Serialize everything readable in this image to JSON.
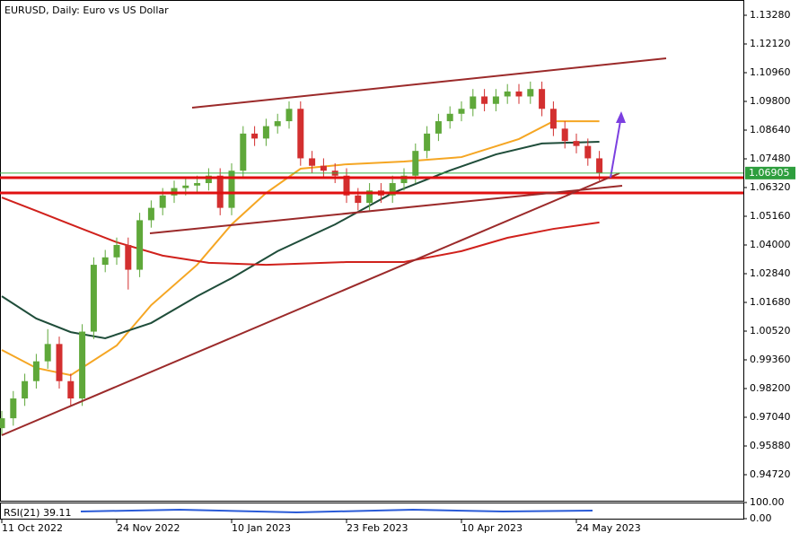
{
  "chart_data": {
    "type": "candlestick",
    "title": "EURUSD, Daily:  Euro vs US Dollar",
    "categories": [
      "11 Oct 2022",
      null,
      null,
      null,
      null,
      null,
      null,
      null,
      null,
      null,
      "24 Nov 2022",
      null,
      null,
      null,
      null,
      null,
      null,
      null,
      null,
      null,
      "10 Jan 2023",
      null,
      null,
      null,
      null,
      null,
      null,
      null,
      null,
      null,
      "23 Feb 2023",
      null,
      null,
      null,
      null,
      null,
      null,
      null,
      null,
      null,
      "10 Apr 2023",
      null,
      null,
      null,
      null,
      null,
      null,
      null,
      null,
      null,
      "24 May 2023",
      null,
      null
    ],
    "open": [
      0.966,
      0.97,
      0.978,
      0.985,
      0.993,
      1.0,
      0.985,
      0.978,
      1.005,
      1.032,
      1.035,
      1.04,
      1.03,
      1.05,
      1.055,
      1.06,
      1.063,
      1.064,
      1.065,
      1.068,
      1.055,
      1.07,
      1.085,
      1.083,
      1.088,
      1.09,
      1.095,
      1.075,
      1.072,
      1.07,
      1.068,
      1.06,
      1.057,
      1.062,
      1.06,
      1.065,
      1.068,
      1.078,
      1.085,
      1.09,
      1.093,
      1.095,
      1.1,
      1.097,
      1.1,
      1.102,
      1.1,
      1.103,
      1.095,
      1.087,
      1.082,
      1.08,
      1.075
    ],
    "high": [
      0.973,
      0.981,
      0.988,
      0.996,
      1.006,
      1.003,
      0.988,
      1.008,
      1.035,
      1.038,
      1.043,
      1.043,
      1.053,
      1.058,
      1.063,
      1.066,
      1.067,
      1.068,
      1.071,
      1.071,
      1.073,
      1.088,
      1.088,
      1.091,
      1.093,
      1.098,
      1.098,
      1.078,
      1.075,
      1.073,
      1.071,
      1.063,
      1.065,
      1.065,
      1.068,
      1.071,
      1.081,
      1.088,
      1.093,
      1.096,
      1.098,
      1.103,
      1.103,
      1.103,
      1.105,
      1.105,
      1.106,
      1.106,
      1.098,
      1.09,
      1.085,
      1.083,
      1.078
    ],
    "low": [
      0.963,
      0.967,
      0.975,
      0.982,
      0.99,
      0.982,
      0.975,
      0.975,
      1.002,
      1.029,
      1.032,
      1.022,
      1.027,
      1.047,
      1.052,
      1.057,
      1.06,
      1.061,
      1.062,
      1.052,
      1.052,
      1.067,
      1.08,
      1.08,
      1.085,
      1.087,
      1.072,
      1.069,
      1.067,
      1.065,
      1.057,
      1.054,
      1.054,
      1.057,
      1.057,
      1.062,
      1.065,
      1.075,
      1.082,
      1.087,
      1.09,
      1.092,
      1.094,
      1.094,
      1.097,
      1.097,
      1.097,
      1.092,
      1.084,
      1.079,
      1.077,
      1.072,
      1.066
    ],
    "close": [
      0.97,
      0.978,
      0.985,
      0.993,
      1.0,
      0.985,
      0.978,
      1.005,
      1.032,
      1.035,
      1.04,
      1.03,
      1.05,
      1.055,
      1.06,
      1.063,
      1.064,
      1.065,
      1.068,
      1.055,
      1.07,
      1.085,
      1.083,
      1.088,
      1.09,
      1.095,
      1.075,
      1.072,
      1.07,
      1.068,
      1.06,
      1.057,
      1.062,
      1.06,
      1.065,
      1.068,
      1.078,
      1.085,
      1.09,
      1.093,
      1.095,
      1.1,
      1.097,
      1.1,
      1.102,
      1.1,
      1.103,
      1.095,
      1.087,
      1.082,
      1.08,
      1.075,
      1.069
    ],
    "up_color": "#5fa83a",
    "down_color": "#d32f2f",
    "moving_averages": [
      {
        "color": "#f5a623",
        "x": [
          0,
          3,
          6,
          10,
          13,
          17,
          20,
          23,
          26,
          30,
          35,
          40,
          45,
          48,
          52
        ],
        "values": [
          0.9976,
          0.9903,
          0.9874,
          0.9994,
          1.0157,
          1.032,
          1.0483,
          1.061,
          1.0708,
          1.0726,
          1.0737,
          1.0755,
          1.0828,
          1.09,
          1.09
        ]
      },
      {
        "color": "#1f4d3a",
        "x": [
          0,
          3,
          6,
          9,
          13,
          17,
          20,
          24,
          29,
          34,
          39,
          43,
          47,
          52
        ],
        "values": [
          1.0193,
          1.0103,
          1.0048,
          1.0023,
          1.0085,
          1.0193,
          1.0266,
          1.0375,
          1.0483,
          1.061,
          1.0701,
          1.0766,
          1.081,
          1.0817
        ]
      },
      {
        "color": "#d0211c",
        "x": [
          0,
          3,
          6,
          10,
          14,
          18,
          23,
          30,
          35,
          40,
          44,
          48,
          52
        ],
        "values": [
          1.0592,
          1.0538,
          1.0483,
          1.0411,
          1.0357,
          1.0328,
          1.032,
          1.0331,
          1.0331,
          1.0375,
          1.0429,
          1.0465,
          1.0491
        ]
      }
    ],
    "current_price": 1.06905,
    "ylim": [
      0.93669,
      1.13896
    ],
    "yticks": [
      {
        "value": 1.1328,
        "label": "1.13280"
      },
      {
        "value": 1.1212,
        "label": "1.12120"
      },
      {
        "value": 1.1096,
        "label": "1.10960"
      },
      {
        "value": 1.098,
        "label": "1.09800"
      },
      {
        "value": 1.0864,
        "label": "1.08640"
      },
      {
        "value": 1.0748,
        "label": "1.07480"
      },
      {
        "value": 1.0632,
        "label": "1.06320"
      },
      {
        "value": 1.0516,
        "label": "1.05160"
      },
      {
        "value": 1.04,
        "label": "1.04000"
      },
      {
        "value": 1.0284,
        "label": "1.02840"
      },
      {
        "value": 1.0168,
        "label": "1.01680"
      },
      {
        "value": 1.0052,
        "label": "1.00520"
      },
      {
        "value": 0.9936,
        "label": "0.99360"
      },
      {
        "value": 0.982,
        "label": "0.98200"
      },
      {
        "value": 0.9704,
        "label": "0.97040"
      },
      {
        "value": 0.9588,
        "label": "0.95880"
      },
      {
        "value": 0.9472,
        "label": "0.94720"
      }
    ],
    "indicator": {
      "label": "RSI(21) 39.11",
      "yticks": [
        {
          "value": 100,
          "label": "100.00"
        },
        {
          "value": 0,
          "label": "0.00"
        }
      ]
    }
  }
}
